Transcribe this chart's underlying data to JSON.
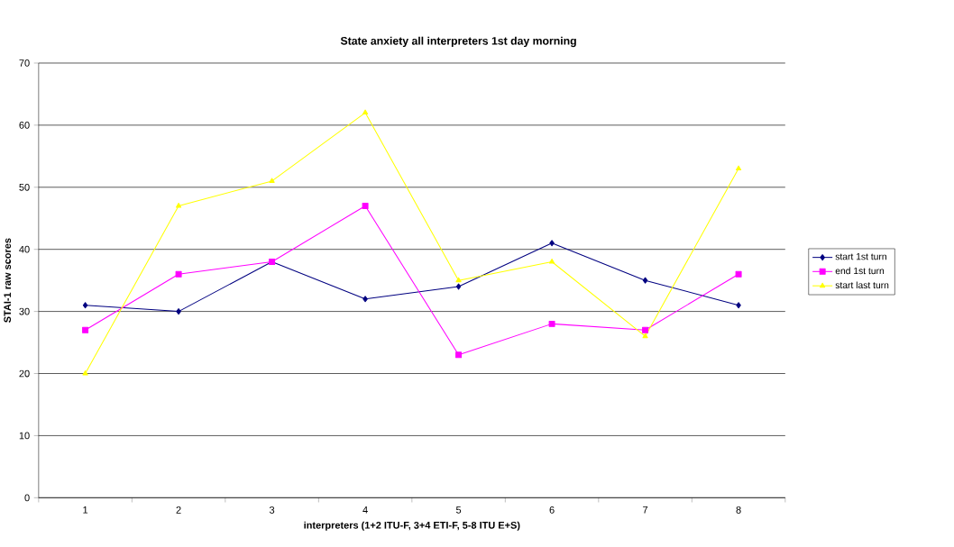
{
  "chart_data": {
    "type": "line",
    "title": "State anxiety all interpreters 1st day morning",
    "xlabel": "interpreters (1+2 ITU-F, 3+4 ETI-F, 5-8 ITU E+S)",
    "ylabel": "STAI-1 raw scores",
    "categories": [
      "1",
      "2",
      "3",
      "4",
      "5",
      "6",
      "7",
      "8"
    ],
    "series": [
      {
        "name": "start 1st turn",
        "color": "#000080",
        "marker": "diamond",
        "values": [
          31,
          30,
          38,
          32,
          34,
          41,
          35,
          31
        ]
      },
      {
        "name": "end 1st turn",
        "color": "#ff00ff",
        "marker": "square",
        "values": [
          27,
          36,
          38,
          47,
          23,
          28,
          27,
          36
        ]
      },
      {
        "name": "start last turn",
        "color": "#ffff00",
        "marker": "triangle",
        "values": [
          20,
          47,
          51,
          62,
          35,
          38,
          26,
          53
        ]
      }
    ],
    "ylim": [
      0,
      70
    ],
    "yticks": [
      0,
      10,
      20,
      30,
      40,
      50,
      60,
      70
    ],
    "grid": "y",
    "legend": "right"
  }
}
